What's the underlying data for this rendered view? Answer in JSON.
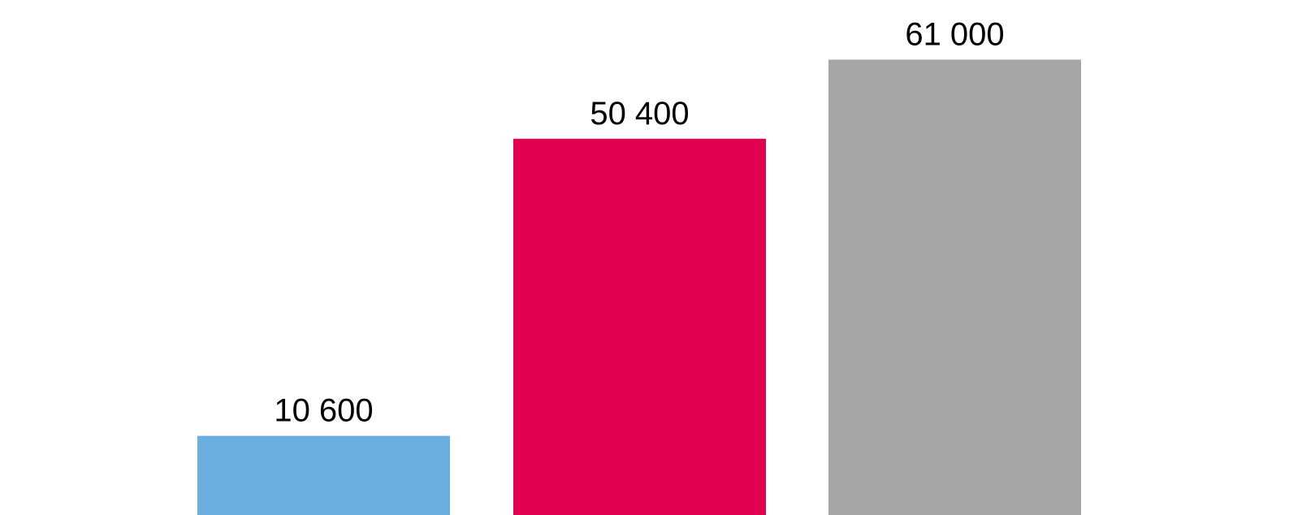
{
  "chart_data": {
    "type": "bar",
    "categories": [
      "",
      "",
      ""
    ],
    "values": [
      10600,
      50400,
      61000
    ],
    "data_labels": [
      "10 600",
      "50 400",
      "61 000"
    ],
    "colors": [
      "#6aafe0",
      "#e30050",
      "#a6a6a6"
    ],
    "title": "",
    "xlabel": "",
    "ylabel": "",
    "ylim": [
      0,
      65400
    ],
    "grid": false,
    "legend": "none"
  }
}
